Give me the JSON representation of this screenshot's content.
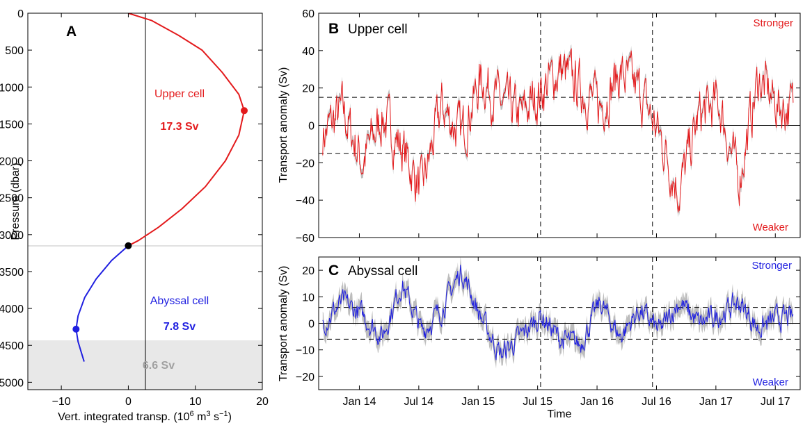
{
  "colors": {
    "upper": "#e31a1c",
    "abyssal": "#1f1fe0",
    "band": "#bdbdbd",
    "bottom_fill": "#e8e8e8",
    "bottom_text": "#a0a0a0"
  },
  "panels": {
    "a": {
      "letter": "A"
    },
    "b": {
      "letter": "B",
      "title": "Upper cell",
      "stronger": "Stronger",
      "weaker": "Weaker"
    },
    "c": {
      "letter": "C",
      "title": "Abyssal cell",
      "stronger": "Stronger",
      "weaker": "Weaker"
    }
  },
  "chart_data": [
    {
      "type": "line",
      "panel": "A",
      "xlabel": "Vert. integrated transp. (10^6 m^3 s^-1)",
      "ylabel": "Pressure (dbar)",
      "xlim": [
        -15,
        20
      ],
      "ylim": [
        5100,
        0
      ],
      "xticks": [
        -10,
        0,
        10,
        20
      ],
      "yticks": [
        0,
        500,
        1000,
        1500,
        2000,
        2500,
        3000,
        3500,
        4000,
        4500,
        5000
      ],
      "series": [
        {
          "name": "Upper cell",
          "color": "#e31a1c",
          "x": [
            0,
            3.5,
            7.5,
            11,
            14,
            16.5,
            17.3,
            16.5,
            14.5,
            11.5,
            8,
            4.5,
            1.5,
            0
          ],
          "y": [
            0,
            100,
            300,
            500,
            800,
            1100,
            1320,
            1650,
            2000,
            2350,
            2650,
            2900,
            3080,
            3150
          ]
        },
        {
          "name": "Abyssal cell",
          "color": "#1f1fe0",
          "x": [
            0,
            -2.5,
            -4.8,
            -6.5,
            -7.5,
            -7.8,
            -7.5,
            -7,
            -6.6
          ],
          "y": [
            3150,
            3350,
            3600,
            3850,
            4100,
            4280,
            4450,
            4600,
            4720
          ]
        }
      ],
      "annotations": [
        {
          "text": "Upper cell",
          "value": "17.3 Sv"
        },
        {
          "text": "Abyssal cell",
          "value": "7.8 Sv"
        },
        {
          "text": "6.6 Sv"
        }
      ],
      "markers": [
        {
          "x": 17.3,
          "y": 1320
        },
        {
          "x": -7.8,
          "y": 4280
        },
        {
          "x": 0,
          "y": 3150
        }
      ],
      "hline": 3150,
      "bottom_band": [
        4700,
        5100
      ],
      "vline": 0
    },
    {
      "type": "line",
      "panel": "B",
      "xlabel": "",
      "ylabel": "Transport anomaly (Sv)",
      "ylim": [
        -60,
        60
      ],
      "yticks": [
        -60,
        -40,
        -20,
        0,
        20,
        40,
        60
      ],
      "x_dates": [
        "2013-09-10",
        "2017-07-20"
      ],
      "xticks": [
        "Jan 14",
        "Jul 14",
        "Jan 15",
        "Jul 15",
        "Jan 16",
        "Jul 16",
        "Jan 17",
        "Jul 17"
      ],
      "threshold": 15,
      "event_dates": [
        "Jul 15",
        "Jun 16"
      ],
      "series": [
        {
          "name": "Upper cell",
          "color": "#e31a1c",
          "x_months": [
            0,
            2,
            4,
            6,
            8,
            10,
            12,
            14,
            16,
            18,
            20,
            22,
            24,
            26,
            28,
            30,
            32,
            34,
            36,
            38,
            40,
            42,
            44,
            46
          ],
          "values": [
            -5,
            8,
            -20,
            5,
            -12,
            -35,
            10,
            -5,
            25,
            12,
            5,
            18,
            30,
            20,
            10,
            28,
            18,
            -5,
            -35,
            5,
            12,
            -30,
            25,
            10
          ]
        }
      ]
    },
    {
      "type": "line",
      "panel": "C",
      "xlabel": "Time",
      "ylabel": "Transport anomaly (Sv)",
      "ylim": [
        -25,
        25
      ],
      "yticks": [
        -20,
        -10,
        0,
        10,
        20
      ],
      "x_dates": [
        "2013-09-10",
        "2017-07-20"
      ],
      "xticks": [
        "Jan 14",
        "Jul 14",
        "Jan 15",
        "Jul 15",
        "Jan 16",
        "Jul 16",
        "Jan 17",
        "Jul 17"
      ],
      "threshold": 6,
      "event_dates": [
        "Jul 15",
        "Jun 16"
      ],
      "series": [
        {
          "name": "Abyssal cell",
          "color": "#1f1fe0",
          "x_months": [
            0,
            2,
            4,
            6,
            8,
            10,
            12,
            14,
            16,
            18,
            20,
            22,
            24,
            26,
            28,
            30,
            32,
            34,
            36,
            38,
            40,
            42,
            44,
            46
          ],
          "values": [
            0,
            8,
            3,
            -5,
            15,
            -3,
            5,
            20,
            2,
            -12,
            -5,
            3,
            -6,
            -8,
            8,
            -5,
            5,
            -3,
            8,
            0,
            3,
            8,
            -2,
            2
          ]
        }
      ]
    }
  ]
}
